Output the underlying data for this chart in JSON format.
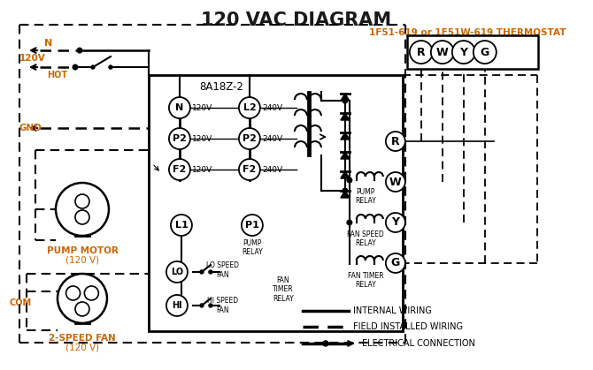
{
  "title": "120 VAC DIAGRAM",
  "title_color": "#1a1a1a",
  "title_fontsize": 15,
  "thermostat_label": "1F51-619 or 1F51W-619 THERMOSTAT",
  "control_box_label": "8A18Z-2",
  "orange_color": "#cc6600",
  "line_color": "#000000",
  "bg_color": "#ffffff",
  "left_120_labels": [
    "N",
    "P2",
    "F2"
  ],
  "left_240_labels": [
    "L2",
    "P2",
    "F2"
  ],
  "relay_circle_labels": [
    "R",
    "W",
    "Y",
    "G"
  ],
  "thermostat_terminals": [
    "R",
    "W",
    "Y",
    "G"
  ],
  "legend_items": [
    "INTERNAL WIRING",
    "FIELD INSTALLED WIRING",
    "ELECTRICAL CONNECTION"
  ]
}
